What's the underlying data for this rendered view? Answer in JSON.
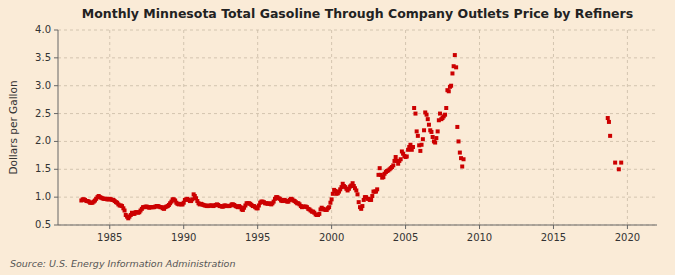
{
  "chart_data": {
    "type": "scatter",
    "title": "Monthly Minnesota Total Gasoline Through Company Outlets Price by Refiners",
    "ylabel": "Dollars per Gallon",
    "annotations": [
      "Source: U.S. Energy Information Administration"
    ],
    "color": "#cc0000",
    "marker": "square",
    "grid": true,
    "xlim": [
      1981.5,
      2022
    ],
    "xticks": [
      1985,
      1990,
      1995,
      2000,
      2005,
      2010,
      2015,
      2020
    ],
    "ylim": [
      0.5,
      4.0
    ],
    "yticks": [
      0.5,
      {
        "value": 1.0,
        "label": "1.0"
      },
      1.5,
      {
        "value": 2.0,
        "label": "2.0"
      },
      2.5,
      {
        "value": 3.0,
        "label": "3.0"
      },
      3.5,
      {
        "value": 4.0,
        "label": "4.0"
      }
    ],
    "x": [
      1983.08,
      1983.17,
      1983.25,
      1983.33,
      1983.42,
      1983.5,
      1983.58,
      1983.67,
      1983.75,
      1983.83,
      1983.92,
      1984.0,
      1984.08,
      1984.17,
      1984.25,
      1984.33,
      1984.42,
      1984.5,
      1984.58,
      1984.67,
      1984.75,
      1984.83,
      1984.92,
      1985.0,
      1985.08,
      1985.17,
      1985.25,
      1985.33,
      1985.42,
      1985.5,
      1985.58,
      1985.67,
      1985.75,
      1985.83,
      1985.92,
      1986.0,
      1986.08,
      1986.17,
      1986.25,
      1986.33,
      1986.42,
      1986.5,
      1986.58,
      1986.67,
      1986.75,
      1986.83,
      1986.92,
      1987.0,
      1987.08,
      1987.17,
      1987.25,
      1987.33,
      1987.42,
      1987.5,
      1987.58,
      1987.67,
      1987.75,
      1987.83,
      1987.92,
      1988.0,
      1988.08,
      1988.17,
      1988.25,
      1988.33,
      1988.42,
      1988.5,
      1988.58,
      1988.67,
      1988.75,
      1988.83,
      1988.92,
      1989.0,
      1989.08,
      1989.17,
      1989.25,
      1989.33,
      1989.42,
      1989.5,
      1989.58,
      1989.67,
      1989.75,
      1989.83,
      1989.92,
      1990.0,
      1990.08,
      1990.17,
      1990.25,
      1990.33,
      1990.42,
      1990.5,
      1990.58,
      1990.67,
      1990.75,
      1990.83,
      1990.92,
      1991.0,
      1991.08,
      1991.17,
      1991.25,
      1991.33,
      1991.42,
      1991.5,
      1991.58,
      1991.67,
      1991.75,
      1991.83,
      1991.92,
      1992.0,
      1992.08,
      1992.17,
      1992.25,
      1992.33,
      1992.42,
      1992.5,
      1992.58,
      1992.67,
      1992.75,
      1992.83,
      1992.92,
      1993.0,
      1993.08,
      1993.17,
      1993.25,
      1993.33,
      1993.42,
      1993.5,
      1993.58,
      1993.67,
      1993.75,
      1993.83,
      1993.92,
      1994.0,
      1994.08,
      1994.17,
      1994.25,
      1994.33,
      1994.42,
      1994.5,
      1994.58,
      1994.67,
      1994.75,
      1994.83,
      1994.92,
      1995.0,
      1995.08,
      1995.17,
      1995.25,
      1995.33,
      1995.42,
      1995.5,
      1995.58,
      1995.67,
      1995.75,
      1995.83,
      1995.92,
      1996.0,
      1996.08,
      1996.17,
      1996.25,
      1996.33,
      1996.42,
      1996.5,
      1996.58,
      1996.67,
      1996.75,
      1996.83,
      1996.92,
      1997.0,
      1997.08,
      1997.17,
      1997.25,
      1997.33,
      1997.42,
      1997.5,
      1997.58,
      1997.67,
      1997.75,
      1997.83,
      1997.92,
      1998.0,
      1998.08,
      1998.17,
      1998.25,
      1998.33,
      1998.42,
      1998.5,
      1998.58,
      1998.67,
      1998.75,
      1998.83,
      1998.92,
      1999.0,
      1999.08,
      1999.17,
      1999.25,
      1999.33,
      1999.42,
      1999.5,
      1999.58,
      1999.67,
      1999.75,
      1999.83,
      1999.92,
      2000.0,
      2000.08,
      2000.17,
      2000.25,
      2000.33,
      2000.42,
      2000.5,
      2000.58,
      2000.67,
      2000.75,
      2000.83,
      2000.92,
      2001.0,
      2001.08,
      2001.17,
      2001.25,
      2001.33,
      2001.42,
      2001.5,
      2001.58,
      2001.67,
      2001.75,
      2001.83,
      2001.92,
      2002.0,
      2002.08,
      2002.17,
      2002.25,
      2002.33,
      2002.42,
      2002.5,
      2002.58,
      2002.67,
      2002.75,
      2002.83,
      2002.92,
      2003.0,
      2003.08,
      2003.17,
      2003.25,
      2003.33,
      2003.42,
      2003.5,
      2003.58,
      2003.67,
      2003.75,
      2003.83,
      2003.92,
      2004.0,
      2004.08,
      2004.17,
      2004.25,
      2004.33,
      2004.42,
      2004.5,
      2004.58,
      2004.67,
      2004.75,
      2004.83,
      2004.92,
      2005.0,
      2005.08,
      2005.17,
      2005.25,
      2005.33,
      2005.42,
      2005.5,
      2005.58,
      2005.67,
      2005.75,
      2005.83,
      2005.92,
      2006.0,
      2006.08,
      2006.17,
      2006.25,
      2006.33,
      2006.42,
      2006.5,
      2006.58,
      2006.67,
      2006.75,
      2006.83,
      2006.92,
      2007.0,
      2007.08,
      2007.17,
      2007.25,
      2007.33,
      2007.42,
      2007.5,
      2007.58,
      2007.67,
      2007.75,
      2007.83,
      2007.92,
      2008.0,
      2008.08,
      2008.17,
      2008.25,
      2008.33,
      2008.42,
      2008.5,
      2008.58,
      2008.67,
      2008.75,
      2008.83,
      2008.92,
      2018.67,
      2018.75,
      2018.83,
      2019.17,
      2019.42,
      2019.58
    ],
    "values": [
      0.94,
      0.96,
      0.96,
      0.95,
      0.93,
      0.93,
      0.92,
      0.9,
      0.9,
      0.9,
      0.92,
      0.94,
      0.97,
      1.0,
      1.02,
      1.0,
      0.99,
      0.98,
      0.97,
      0.97,
      0.97,
      0.96,
      0.96,
      0.97,
      0.96,
      0.95,
      0.95,
      0.93,
      0.91,
      0.9,
      0.87,
      0.85,
      0.85,
      0.84,
      0.8,
      0.76,
      0.68,
      0.65,
      0.62,
      0.65,
      0.68,
      0.72,
      0.7,
      0.7,
      0.73,
      0.73,
      0.72,
      0.73,
      0.76,
      0.79,
      0.82,
      0.82,
      0.83,
      0.83,
      0.82,
      0.81,
      0.82,
      0.82,
      0.82,
      0.82,
      0.83,
      0.84,
      0.84,
      0.83,
      0.82,
      0.82,
      0.8,
      0.79,
      0.82,
      0.83,
      0.84,
      0.86,
      0.89,
      0.92,
      0.96,
      0.96,
      0.94,
      0.9,
      0.88,
      0.87,
      0.88,
      0.87,
      0.87,
      0.9,
      0.95,
      0.96,
      0.97,
      0.95,
      0.93,
      0.93,
      0.96,
      1.05,
      1.02,
      0.98,
      0.93,
      0.89,
      0.87,
      0.88,
      0.87,
      0.86,
      0.85,
      0.85,
      0.84,
      0.84,
      0.85,
      0.85,
      0.85,
      0.84,
      0.85,
      0.86,
      0.87,
      0.86,
      0.84,
      0.84,
      0.83,
      0.83,
      0.85,
      0.85,
      0.84,
      0.84,
      0.84,
      0.85,
      0.87,
      0.87,
      0.86,
      0.84,
      0.83,
      0.82,
      0.84,
      0.82,
      0.78,
      0.77,
      0.81,
      0.85,
      0.89,
      0.89,
      0.89,
      0.88,
      0.86,
      0.84,
      0.84,
      0.82,
      0.8,
      0.8,
      0.85,
      0.9,
      0.92,
      0.92,
      0.91,
      0.89,
      0.89,
      0.88,
      0.89,
      0.88,
      0.87,
      0.89,
      0.92,
      0.97,
      1.0,
      1.0,
      0.98,
      0.97,
      0.94,
      0.93,
      0.95,
      0.95,
      0.93,
      0.92,
      0.92,
      0.95,
      0.97,
      0.96,
      0.94,
      0.93,
      0.91,
      0.89,
      0.89,
      0.87,
      0.84,
      0.82,
      0.83,
      0.83,
      0.83,
      0.82,
      0.79,
      0.78,
      0.76,
      0.74,
      0.74,
      0.72,
      0.69,
      0.68,
      0.68,
      0.7,
      0.78,
      0.81,
      0.79,
      0.78,
      0.77,
      0.77,
      0.8,
      0.82,
      0.9,
      0.96,
      1.06,
      1.13,
      1.11,
      1.06,
      1.07,
      1.1,
      1.14,
      1.18,
      1.24,
      1.2,
      1.18,
      1.15,
      1.12,
      1.15,
      1.19,
      1.21,
      1.25,
      1.2,
      1.16,
      1.12,
      1.05,
      0.91,
      0.82,
      0.79,
      0.84,
      0.95,
      1.0,
      1.0,
      0.97,
      0.97,
      0.95,
      0.95,
      1.02,
      1.1,
      1.1,
      1.1,
      1.14,
      1.4,
      1.52,
      1.4,
      1.35,
      1.36,
      1.42,
      1.45,
      1.47,
      1.48,
      1.5,
      1.52,
      1.54,
      1.57,
      1.65,
      1.72,
      1.65,
      1.6,
      1.65,
      1.68,
      1.82,
      1.78,
      1.74,
      1.72,
      1.73,
      1.85,
      1.9,
      1.94,
      1.85,
      1.9,
      2.6,
      2.5,
      2.18,
      2.1,
      1.93,
      1.83,
      1.94,
      2.04,
      2.2,
      2.52,
      2.48,
      2.4,
      2.3,
      2.2,
      2.17,
      2.08,
      2.0,
      1.98,
      2.06,
      2.18,
      2.38,
      2.5,
      2.4,
      2.42,
      2.45,
      2.48,
      2.6,
      2.92,
      2.9,
      2.98,
      3.0,
      3.22,
      3.35,
      3.55,
      3.33,
      2.26,
      2.0,
      1.8,
      1.7,
      1.55,
      1.68,
      2.42,
      2.35,
      2.1,
      1.62,
      1.5,
      1.62
    ]
  }
}
